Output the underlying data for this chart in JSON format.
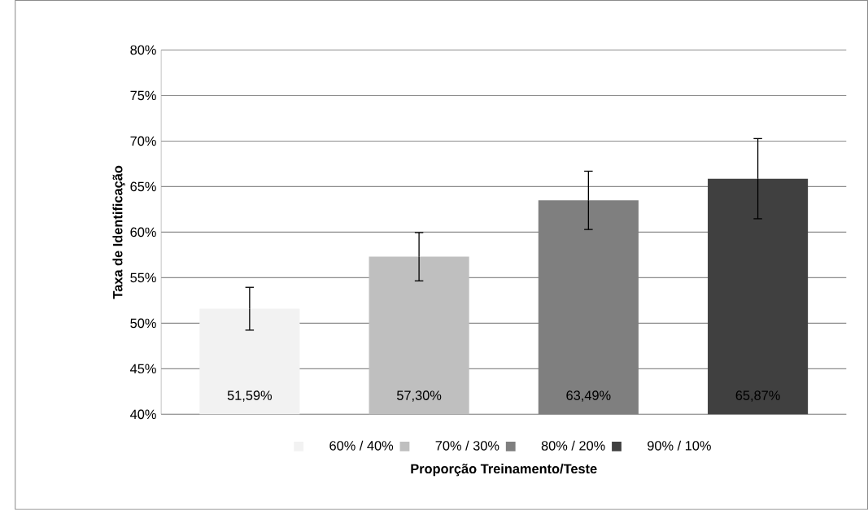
{
  "chart_data": {
    "type": "bar",
    "xlabel": "Proporção Treinamento/Teste",
    "ylabel": "Taxa de Identificação",
    "categories": [
      null
    ],
    "series": [
      {
        "name": "60% / 40%",
        "color": "#f2f2f2",
        "values": [
          51.59
        ],
        "errors": [
          2.35
        ],
        "value_labels": [
          "51,59%"
        ]
      },
      {
        "name": "70% / 30%",
        "color": "#bfbfbf",
        "values": [
          57.3
        ],
        "errors": [
          2.65
        ],
        "value_labels": [
          "57,30%"
        ]
      },
      {
        "name": "80% / 20%",
        "color": "#7f7f7f",
        "values": [
          63.49
        ],
        "errors": [
          3.2
        ],
        "value_labels": [
          "63,49%"
        ]
      },
      {
        "name": "90% / 10%",
        "color": "#404040",
        "values": [
          65.87
        ],
        "errors": [
          4.4
        ],
        "value_labels": [
          "65,87%"
        ]
      }
    ],
    "ylim": [
      40,
      80
    ],
    "yticks": [
      {
        "value": 40,
        "label": "40%"
      },
      {
        "value": 45,
        "label": "45%"
      },
      {
        "value": 50,
        "label": "50%"
      },
      {
        "value": 55,
        "label": "55%"
      },
      {
        "value": 60,
        "label": "60%"
      },
      {
        "value": 65,
        "label": "65%"
      },
      {
        "value": 70,
        "label": "70%"
      },
      {
        "value": 75,
        "label": "75%"
      },
      {
        "value": 80,
        "label": "80%"
      }
    ],
    "grid": "y",
    "legend": "bottom"
  }
}
